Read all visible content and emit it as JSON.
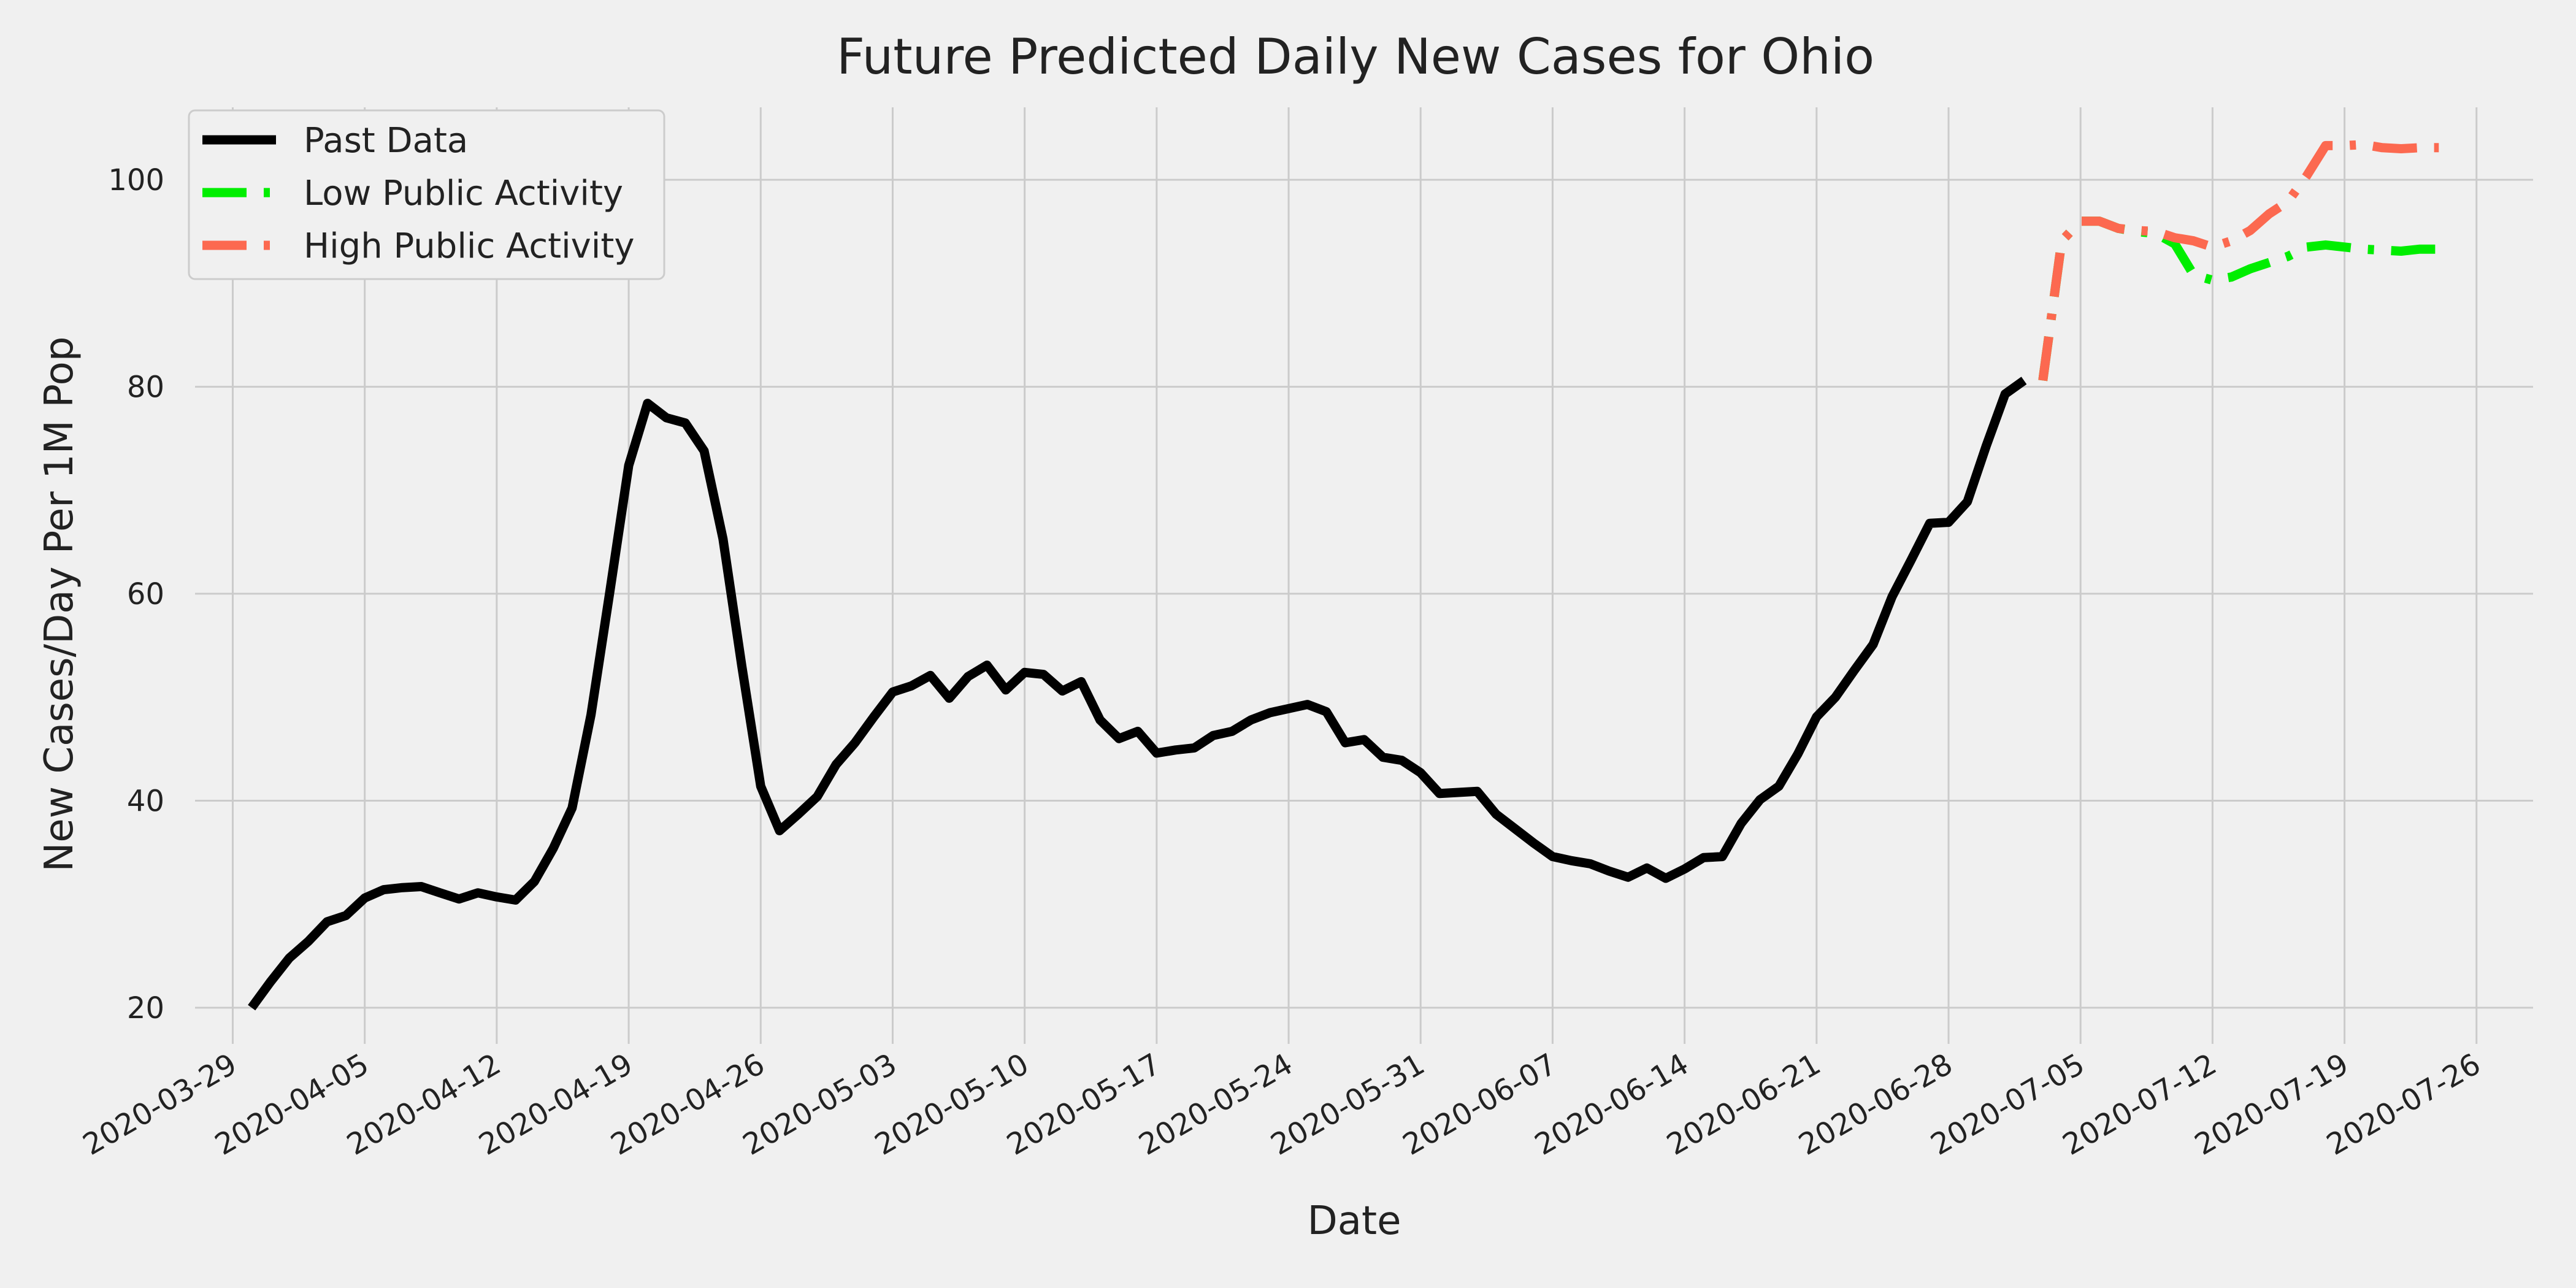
{
  "chart_data": {
    "type": "line",
    "title": "Future Predicted Daily New Cases for Ohio",
    "xlabel": "Date",
    "ylabel": "New Cases/Day Per 1M Pop",
    "x_range": [
      "2020-03-27",
      "2020-07-29"
    ],
    "ylim": [
      16.5,
      107
    ],
    "x_ticks": [
      "2020-03-29",
      "2020-04-05",
      "2020-04-12",
      "2020-04-19",
      "2020-04-26",
      "2020-05-03",
      "2020-05-10",
      "2020-05-17",
      "2020-05-24",
      "2020-05-31",
      "2020-06-07",
      "2020-06-14",
      "2020-06-21",
      "2020-06-28",
      "2020-07-05",
      "2020-07-12",
      "2020-07-19",
      "2020-07-26"
    ],
    "y_ticks": [
      20,
      40,
      60,
      80,
      100
    ],
    "grid": true,
    "legend_position": "top-left",
    "series": [
      {
        "name": "Past Data",
        "color": "#000000",
        "style": "solid",
        "start_date": "2020-03-30",
        "values": [
          20.0,
          22.5,
          24.8,
          26.4,
          28.3,
          28.9,
          30.6,
          31.4,
          31.6,
          31.7,
          31.1,
          30.5,
          31.1,
          30.7,
          30.4,
          32.2,
          35.4,
          39.3,
          48.3,
          60.2,
          72.4,
          78.4,
          77.0,
          76.5,
          73.8,
          65.3,
          53.0,
          41.4,
          37.1,
          38.7,
          40.4,
          43.5,
          45.6,
          48.1,
          50.5,
          51.1,
          52.1,
          49.9,
          52.0,
          53.1,
          50.7,
          52.4,
          52.2,
          50.6,
          51.5,
          47.8,
          46.0,
          46.7,
          44.6,
          44.9,
          45.1,
          46.3,
          46.7,
          47.8,
          48.5,
          48.9,
          49.3,
          48.6,
          45.6,
          45.9,
          44.2,
          43.9,
          42.7,
          40.7,
          40.8,
          40.9,
          38.7,
          37.3,
          35.9,
          34.6,
          34.2,
          33.9,
          33.2,
          32.6,
          33.5,
          32.5,
          33.4,
          34.5,
          34.6,
          37.8,
          40.1,
          41.4,
          44.5,
          48.1,
          50.0,
          52.6,
          55.1,
          59.7,
          63.2,
          66.8,
          66.9,
          68.9,
          74.3,
          79.3,
          80.6
        ]
      },
      {
        "name": "Low Public Activity",
        "color": "#00ee00",
        "style": "dashdot",
        "start_date": "2020-07-03",
        "values": [
          80.6,
          94.1,
          96.0,
          96.0,
          95.3,
          95.0,
          94.8,
          93.8,
          90.8,
          90.3,
          90.6,
          91.4,
          92.0,
          92.6,
          93.5,
          93.7,
          93.5,
          93.3,
          93.2,
          93.1,
          93.3,
          93.3
        ]
      },
      {
        "name": "High Public Activity",
        "color": "#fc6950",
        "style": "dashdot",
        "start_date": "2020-07-03",
        "values": [
          80.6,
          94.1,
          96.0,
          96.0,
          95.3,
          95.1,
          95.0,
          94.4,
          94.1,
          93.5,
          94.1,
          95.1,
          96.7,
          97.9,
          100.4,
          103.3,
          103.3,
          103.4,
          103.1,
          103.0,
          103.1,
          103.1
        ]
      }
    ]
  }
}
